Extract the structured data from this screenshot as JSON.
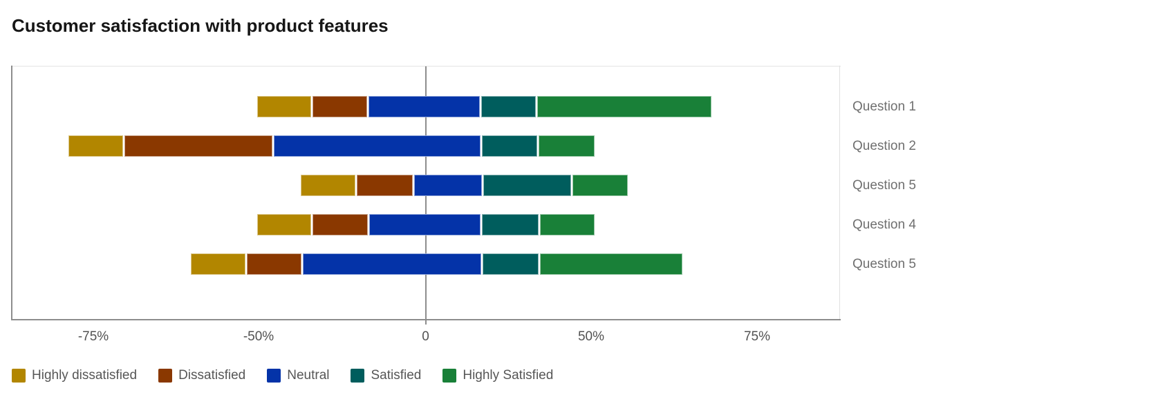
{
  "title": "Customer satisfaction with product features",
  "chart_data": {
    "type": "bar",
    "variant": "horizontal-diverging-stacked-likert",
    "title": "Customer satisfaction with product features",
    "categories": [
      "Question 1",
      "Question 2",
      "Question 5",
      "Question 4",
      "Question 5"
    ],
    "series": [
      {
        "name": "Highly dissatisfied",
        "color": "#b28600"
      },
      {
        "name": "Dissatisfied",
        "color": "#8a3800"
      },
      {
        "name": "Neutral",
        "color": "#0433a8"
      },
      {
        "name": "Satisfied",
        "color": "#005d5d"
      },
      {
        "name": "Highly Satisfied",
        "color": "#198038"
      }
    ],
    "segments_pct": [
      [
        [
          -50.3,
          -34.0
        ],
        [
          -34.0,
          -17.2
        ],
        [
          -17.2,
          16.7
        ],
        [
          16.7,
          33.5
        ],
        [
          33.5,
          68.2
        ]
      ],
      [
        [
          -78.9,
          -70.4
        ],
        [
          -70.4,
          -45.6
        ],
        [
          -45.6,
          16.9
        ],
        [
          16.9,
          34.0
        ],
        [
          34.0,
          50.6
        ]
      ],
      [
        [
          -37.5,
          -20.9
        ],
        [
          -20.9,
          -3.6
        ],
        [
          -3.6,
          17.2
        ],
        [
          17.2,
          44.2
        ],
        [
          44.2,
          55.6
        ]
      ],
      [
        [
          -50.3,
          -34.0
        ],
        [
          -34.0,
          -17.0
        ],
        [
          -17.0,
          16.9
        ],
        [
          16.9,
          34.3
        ],
        [
          34.3,
          50.6
        ]
      ],
      [
        [
          -60.4,
          -51.9
        ],
        [
          -51.9,
          -36.9
        ],
        [
          -36.9,
          17.1
        ],
        [
          17.1,
          34.3
        ],
        [
          34.3,
          63.9
        ]
      ]
    ],
    "approx_widths_pct": [
      [
        16,
        17,
        34,
        17,
        35
      ],
      [
        9,
        25,
        62,
        17,
        17
      ],
      [
        17,
        17,
        21,
        27,
        11
      ],
      [
        16,
        17,
        34,
        17,
        16
      ],
      [
        9,
        15,
        54,
        17,
        30
      ]
    ],
    "x_ticks": [
      {
        "value": -75,
        "label": "-75%"
      },
      {
        "value": -50,
        "label": "-50%"
      },
      {
        "value": 0,
        "label": "0"
      },
      {
        "value": 50,
        "label": "50%"
      },
      {
        "value": 75,
        "label": "75%"
      }
    ],
    "axis": {
      "ticks_evenly_spaced": true,
      "zero_baseline": true,
      "grid": false
    },
    "legend_position": "bottom"
  },
  "legend": {
    "items": [
      {
        "label": "Highly dissatisfied",
        "color": "#b28600"
      },
      {
        "label": "Dissatisfied",
        "color": "#8a3800"
      },
      {
        "label": "Neutral",
        "color": "#0433a8"
      },
      {
        "label": "Satisfied",
        "color": "#005d5d"
      },
      {
        "label": "Highly Satisfied",
        "color": "#198038"
      }
    ]
  },
  "colors": {
    "title": "#161616",
    "axis_line": "#8d8d8d",
    "plot_border_light": "#e0e0e0",
    "tick_label": "#525252",
    "category_label": "#6f6f6f",
    "legend_label": "#565656",
    "background": "#ffffff"
  }
}
